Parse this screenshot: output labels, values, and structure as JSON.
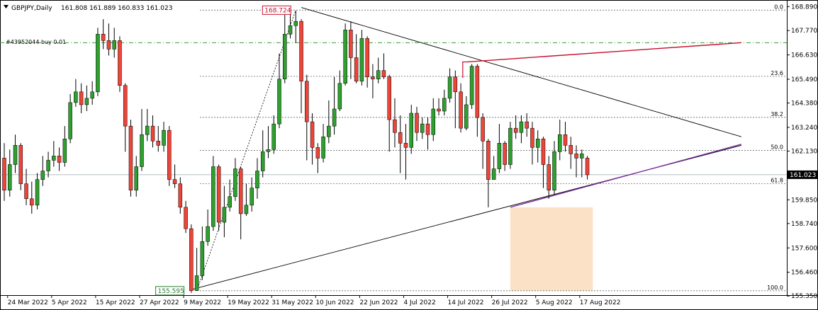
{
  "header": {
    "symbol_label": "GBPJPY,Daily",
    "ohlc_text": "161.808 161.889 160.833 161.023"
  },
  "order_label": "#43952044 buy 0.01",
  "colors": {
    "up": "#2ea02e",
    "down": "#ef4438",
    "grid": "#c8c8c8",
    "fib": "#6a6a6a",
    "trend_red": "#c8102e",
    "trend_purple": "#7b2f9e",
    "order_line": "#3a9c3a",
    "zone": "#fbe2c6",
    "text": "#000000"
  },
  "chart_data": {
    "type": "candlestick",
    "symbol": "GBPJPY",
    "timeframe": "Daily",
    "ylim": [
      155.39,
      169.0
    ],
    "y_ticks": [
      "168.890",
      "167.770",
      "166.630",
      "165.490",
      "164.380",
      "163.240",
      "162.130",
      "160.990",
      "159.850",
      "158.740",
      "157.600",
      "156.460",
      "155.350"
    ],
    "current_price": "161.023",
    "x_labels": [
      {
        "label": "24 Mar 2022",
        "index": 1
      },
      {
        "label": "5 Apr 2022",
        "index": 9
      },
      {
        "label": "15 Apr 2022",
        "index": 17
      },
      {
        "label": "27 Apr 2022",
        "index": 25
      },
      {
        "label": "9 May 2022",
        "index": 33
      },
      {
        "label": "19 May 2022",
        "index": 41
      },
      {
        "label": "31 May 2022",
        "index": 49
      },
      {
        "label": "10 Jun 2022",
        "index": 57
      },
      {
        "label": "22 Jun 2022",
        "index": 65
      },
      {
        "label": "4 Jul 2022",
        "index": 73
      },
      {
        "label": "14 Jul 2022",
        "index": 81
      },
      {
        "label": "26 Jul 2022",
        "index": 89
      },
      {
        "label": "5 Aug 2022",
        "index": 97
      },
      {
        "label": "17 Aug 2022",
        "index": 105
      }
    ],
    "candles": [
      [
        161.8,
        160.3,
        162.5,
        159.8
      ],
      [
        160.3,
        161.5,
        162.2,
        160.0
      ],
      [
        161.5,
        162.4,
        162.9,
        161.1
      ],
      [
        162.4,
        160.6,
        162.5,
        160.3
      ],
      [
        160.6,
        159.9,
        161.3,
        159.6
      ],
      [
        159.9,
        159.6,
        160.7,
        159.2
      ],
      [
        159.6,
        160.8,
        161.1,
        159.4
      ],
      [
        160.8,
        161.2,
        161.9,
        160.5
      ],
      [
        161.2,
        161.7,
        162.1,
        160.9
      ],
      [
        161.7,
        161.9,
        162.6,
        161.4
      ],
      [
        161.9,
        161.6,
        162.3,
        161.2
      ],
      [
        161.6,
        162.7,
        163.3,
        161.4
      ],
      [
        162.7,
        164.4,
        164.8,
        162.5
      ],
      [
        164.4,
        164.9,
        165.5,
        164.2
      ],
      [
        164.9,
        164.3,
        165.3,
        163.9
      ],
      [
        164.3,
        164.6,
        165.2,
        164.0
      ],
      [
        164.6,
        164.9,
        165.4,
        164.3
      ],
      [
        164.9,
        167.6,
        167.9,
        164.7
      ],
      [
        167.6,
        167.3,
        168.3,
        166.9
      ],
      [
        167.3,
        166.9,
        168.1,
        166.6
      ],
      [
        166.9,
        167.3,
        167.9,
        166.5
      ],
      [
        167.3,
        165.2,
        167.5,
        164.9
      ],
      [
        165.2,
        163.3,
        165.3,
        162.1
      ],
      [
        163.3,
        160.3,
        163.6,
        160.0
      ],
      [
        160.3,
        161.4,
        161.9,
        160.0
      ],
      [
        161.4,
        162.9,
        164.1,
        161.2
      ],
      [
        162.9,
        163.3,
        164.1,
        162.6
      ],
      [
        163.3,
        162.6,
        163.8,
        162.3
      ],
      [
        162.6,
        162.4,
        163.3,
        162.1
      ],
      [
        162.4,
        163.1,
        163.5,
        162.1
      ],
      [
        163.1,
        160.8,
        163.3,
        160.5
      ],
      [
        160.8,
        160.6,
        161.5,
        160.4
      ],
      [
        160.6,
        159.5,
        160.9,
        159.2
      ],
      [
        159.5,
        158.5,
        159.8,
        158.3
      ],
      [
        158.5,
        155.6,
        158.7,
        155.5
      ],
      [
        155.6,
        156.3,
        157.6,
        155.9
      ],
      [
        156.3,
        157.9,
        158.6,
        156.1
      ],
      [
        157.9,
        158.6,
        159.4,
        157.7
      ],
      [
        158.6,
        161.4,
        161.9,
        158.4
      ],
      [
        161.4,
        158.8,
        161.5,
        158.4
      ],
      [
        158.8,
        159.5,
        160.5,
        158.1
      ],
      [
        159.5,
        160.0,
        160.8,
        159.3
      ],
      [
        160.0,
        161.3,
        161.8,
        159.8
      ],
      [
        161.3,
        159.2,
        161.4,
        158.0
      ],
      [
        159.2,
        159.6,
        160.6,
        159.1
      ],
      [
        159.6,
        160.4,
        160.9,
        159.3
      ],
      [
        160.4,
        161.2,
        161.8,
        159.9
      ],
      [
        161.2,
        162.1,
        163.1,
        160.9
      ],
      [
        162.1,
        162.2,
        163.3,
        161.8
      ],
      [
        162.2,
        163.4,
        163.8,
        162.0
      ],
      [
        163.4,
        165.5,
        166.7,
        163.2
      ],
      [
        165.5,
        167.6,
        168.7,
        165.3
      ],
      [
        167.6,
        168.0,
        168.8,
        167.4
      ],
      [
        168.0,
        168.2,
        168.7,
        167.2
      ],
      [
        168.2,
        165.4,
        168.3,
        163.9
      ],
      [
        165.4,
        163.5,
        165.7,
        161.7
      ],
      [
        163.5,
        162.3,
        163.9,
        161.5
      ],
      [
        162.3,
        161.8,
        162.5,
        161.1
      ],
      [
        161.8,
        162.8,
        163.4,
        161.6
      ],
      [
        162.8,
        163.3,
        164.5,
        162.5
      ],
      [
        163.3,
        164.1,
        165.6,
        162.9
      ],
      [
        164.1,
        165.3,
        165.9,
        164.0
      ],
      [
        165.3,
        167.8,
        168.1,
        165.2
      ],
      [
        167.8,
        166.5,
        168.2,
        165.5
      ],
      [
        166.5,
        165.4,
        167.6,
        165.3
      ],
      [
        165.4,
        167.4,
        167.8,
        165.2
      ],
      [
        167.4,
        165.6,
        167.5,
        165.1
      ],
      [
        165.6,
        165.5,
        166.2,
        164.6
      ],
      [
        165.5,
        165.9,
        166.5,
        165.3
      ],
      [
        165.9,
        165.6,
        166.7,
        165.5
      ],
      [
        165.6,
        163.6,
        165.7,
        162.1
      ],
      [
        163.6,
        163.0,
        164.6,
        162.3
      ],
      [
        163.0,
        162.5,
        163.8,
        161.1
      ],
      [
        162.5,
        162.3,
        163.4,
        160.8
      ],
      [
        162.3,
        163.9,
        164.3,
        162.0
      ],
      [
        163.9,
        163.0,
        164.2,
        162.6
      ],
      [
        163.0,
        163.4,
        163.7,
        162.7
      ],
      [
        163.4,
        162.9,
        163.7,
        162.2
      ],
      [
        162.9,
        164.1,
        164.6,
        162.6
      ],
      [
        164.1,
        164.0,
        164.6,
        163.8
      ],
      [
        164.0,
        164.6,
        165.0,
        163.8
      ],
      [
        164.6,
        165.6,
        166.0,
        164.4
      ],
      [
        165.6,
        164.9,
        165.9,
        163.2
      ],
      [
        164.9,
        163.2,
        165.3,
        163.0
      ],
      [
        163.2,
        164.3,
        164.7,
        163.1
      ],
      [
        164.3,
        166.1,
        166.2,
        164.1
      ],
      [
        166.1,
        163.7,
        166.2,
        162.8
      ],
      [
        163.7,
        162.6,
        163.9,
        161.3
      ],
      [
        162.6,
        160.8,
        162.7,
        159.5
      ],
      [
        160.8,
        161.3,
        161.9,
        160.9
      ],
      [
        161.3,
        162.5,
        163.4,
        161.1
      ],
      [
        162.5,
        161.5,
        162.6,
        161.2
      ],
      [
        161.5,
        163.2,
        163.5,
        161.3
      ],
      [
        163.2,
        163.0,
        163.8,
        162.7
      ],
      [
        163.0,
        163.5,
        163.8,
        162.5
      ],
      [
        163.5,
        163.2,
        163.9,
        162.8
      ],
      [
        163.2,
        162.3,
        163.5,
        161.5
      ],
      [
        162.3,
        162.7,
        163.1,
        161.6
      ],
      [
        162.7,
        161.5,
        162.8,
        160.4
      ],
      [
        161.5,
        160.3,
        161.9,
        159.9
      ],
      [
        160.3,
        162.1,
        162.6,
        160.1
      ],
      [
        162.1,
        162.9,
        163.6,
        161.7
      ],
      [
        162.9,
        162.4,
        163.5,
        162.1
      ],
      [
        162.4,
        162.0,
        162.8,
        161.3
      ],
      [
        162.0,
        161.8,
        162.4,
        160.9
      ],
      [
        161.8,
        162.0,
        162.2,
        160.9
      ],
      [
        161.8,
        161.02,
        161.9,
        160.8
      ]
    ],
    "fibonacci": {
      "high": 168.724,
      "low": 155.595,
      "levels": [
        {
          "ratio": 0.0,
          "label": "0.0"
        },
        {
          "ratio": 0.236,
          "label": "23.6"
        },
        {
          "ratio": 0.382,
          "label": "38.2"
        },
        {
          "ratio": 0.5,
          "label": "50.0"
        },
        {
          "ratio": 0.618,
          "label": "61.8"
        },
        {
          "ratio": 1.0,
          "label": "100.0"
        }
      ],
      "high_label": "168.724",
      "low_label": "155.595"
    },
    "order_price": 167.2,
    "trendlines": [
      {
        "name": "upper-descending",
        "color": "black",
        "from": {
          "index": 54,
          "price": 168.85
        },
        "to": {
          "index": 134,
          "price": 162.8
        }
      },
      {
        "name": "lower-ascending",
        "color": "black",
        "from": {
          "index": 34,
          "price": 155.65
        },
        "to": {
          "index": 134,
          "price": 162.4
        }
      },
      {
        "name": "red-channel",
        "color": "red",
        "from": {
          "index": 84,
          "price": 166.3
        },
        "to": {
          "index": 134,
          "price": 167.2
        }
      },
      {
        "name": "purple-channel",
        "color": "purple",
        "from": {
          "index": 92,
          "price": 159.5
        },
        "to": {
          "index": 134,
          "price": 162.45
        }
      }
    ],
    "target_zone": {
      "from_index": 92,
      "to_index": 107,
      "top": 159.5,
      "bottom": 155.6
    }
  }
}
